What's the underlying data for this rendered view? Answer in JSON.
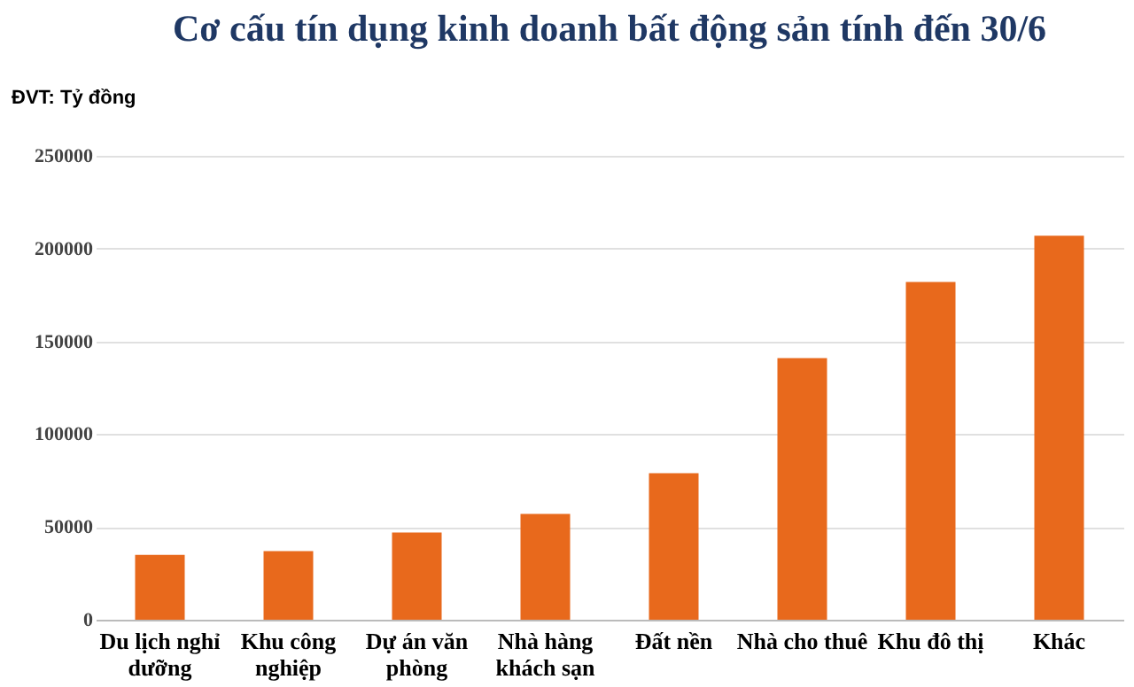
{
  "chart_data": {
    "type": "bar",
    "title": "Cơ cấu tín dụng kinh doanh bất động sản tính đến 30/6",
    "ylabel": "ĐVT: Tỷ đồng",
    "categories": [
      "Du lịch nghỉ dưỡng",
      "Khu công nghiệp",
      "Dự án văn phòng",
      "Nhà hàng khách sạn",
      "Đất nền",
      "Nhà cho thuê",
      "Khu đô thị",
      "Khác"
    ],
    "values": [
      35000,
      37000,
      47000,
      57000,
      79000,
      141000,
      182000,
      207000
    ],
    "color": "#e8691c",
    "ylim": [
      0,
      250000
    ],
    "yticks": [
      0,
      50000,
      100000,
      150000,
      200000,
      250000
    ],
    "grid": "y"
  }
}
